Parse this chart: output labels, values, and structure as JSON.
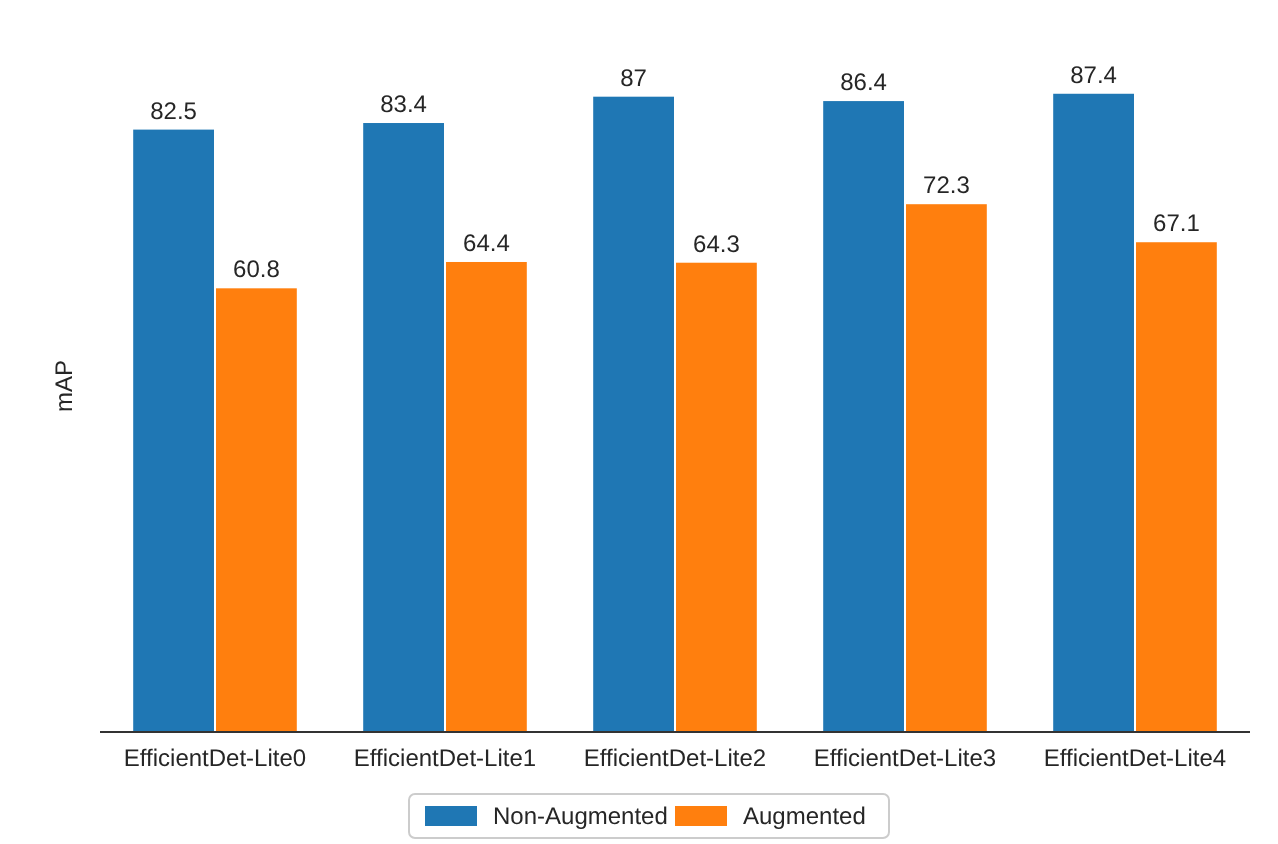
{
  "chart_data": {
    "type": "bar",
    "ylabel": "mAP",
    "categories": [
      "EfficientDet-Lite0",
      "EfficientDet-Lite1",
      "EfficientDet-Lite2",
      "EfficientDet-Lite3",
      "EfficientDet-Lite4"
    ],
    "series": [
      {
        "name": "Non-Augmented",
        "color": "#1f77b4",
        "values": [
          82.5,
          83.4,
          87,
          86.4,
          87.4
        ]
      },
      {
        "name": "Augmented",
        "color": "#ff7f0e",
        "values": [
          60.8,
          64.4,
          64.3,
          72.3,
          67.1
        ]
      }
    ],
    "data_labels": true,
    "grid": false,
    "legend": "bottom"
  }
}
